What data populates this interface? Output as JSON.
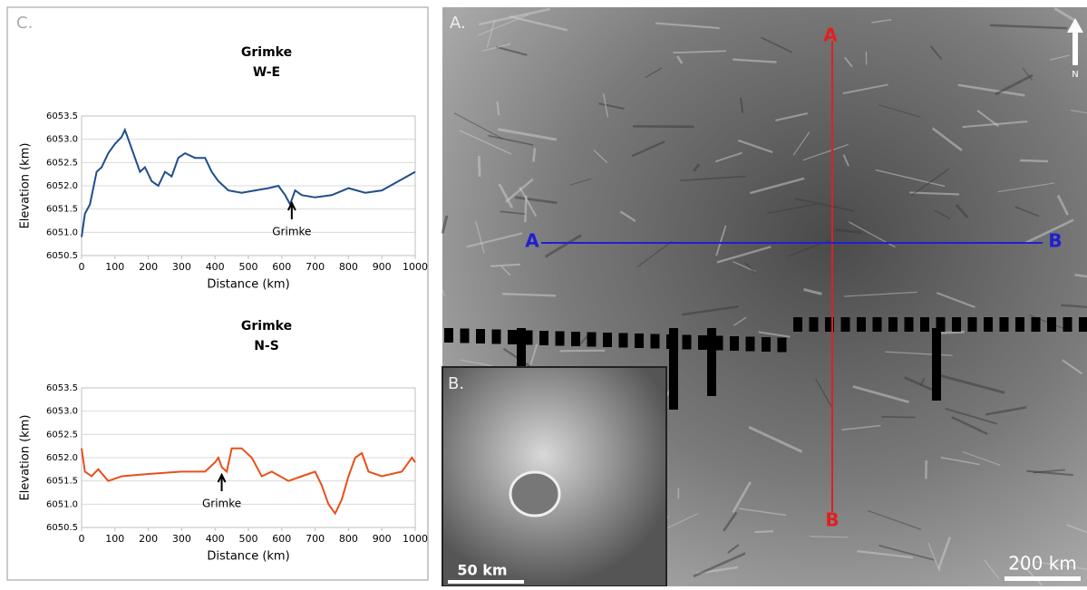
{
  "chart_data": [
    {
      "type": "line",
      "title": "Grimke",
      "subtitle": "W-E",
      "xlabel": "Distance (km)",
      "ylabel": "Elevation (km)",
      "color": "#1f4e8c",
      "annotation": "Grimke",
      "grid": true,
      "x": [
        0,
        10,
        25,
        45,
        60,
        80,
        100,
        120,
        130,
        145,
        160,
        175,
        190,
        210,
        230,
        250,
        270,
        290,
        310,
        340,
        370,
        390,
        410,
        440,
        480,
        520,
        560,
        590,
        610,
        625,
        640,
        660,
        700,
        750,
        800,
        850,
        900,
        950,
        1000
      ],
      "values": [
        6050.9,
        6051.4,
        6051.6,
        6052.3,
        6052.4,
        6052.7,
        6052.9,
        6053.05,
        6053.2,
        6052.9,
        6052.6,
        6052.3,
        6052.4,
        6052.1,
        6052.0,
        6052.3,
        6052.2,
        6052.6,
        6052.7,
        6052.6,
        6052.6,
        6052.3,
        6052.1,
        6051.9,
        6051.85,
        6051.9,
        6051.95,
        6052.0,
        6051.8,
        6051.6,
        6051.9,
        6051.8,
        6051.75,
        6051.8,
        6051.95,
        6051.85,
        6051.9,
        6052.1,
        6052.3
      ],
      "xlim": [
        0,
        1000
      ],
      "xticks": [
        0,
        100,
        200,
        300,
        400,
        500,
        600,
        700,
        800,
        900,
        1000
      ],
      "ylim": [
        6050.5,
        6053.5
      ],
      "yticks": [
        6050.5,
        {
          "value": 6051,
          "label": "6051.0"
        },
        6051.5,
        {
          "value": 6052,
          "label": "6052.0"
        },
        6052.5,
        {
          "value": 6053,
          "label": "6053.0"
        },
        6053.5
      ]
    },
    {
      "type": "line",
      "title": "Grimke",
      "subtitle": "N-S",
      "xlabel": "Distance (km)",
      "ylabel": "Elevation (km)",
      "color": "#e8501a",
      "annotation": "Grimke",
      "grid": true,
      "x": [
        0,
        10,
        30,
        50,
        80,
        120,
        200,
        300,
        370,
        400,
        410,
        420,
        435,
        450,
        480,
        510,
        540,
        570,
        620,
        660,
        700,
        720,
        740,
        760,
        780,
        800,
        820,
        840,
        860,
        900,
        960,
        990,
        1000
      ],
      "values": [
        6052.2,
        6051.7,
        6051.6,
        6051.75,
        6051.5,
        6051.6,
        6051.65,
        6051.7,
        6051.7,
        6051.9,
        6052.0,
        6051.8,
        6051.7,
        6052.2,
        6052.2,
        6052.0,
        6051.6,
        6051.7,
        6051.5,
        6051.6,
        6051.7,
        6051.4,
        6051.0,
        6050.8,
        6051.1,
        6051.6,
        6052.0,
        6052.1,
        6051.7,
        6051.6,
        6051.7,
        6052.0,
        6051.9
      ],
      "xlim": [
        0,
        1000
      ],
      "xticks": [
        0,
        100,
        200,
        300,
        400,
        500,
        600,
        700,
        800,
        900,
        1000
      ],
      "ylim": [
        6050.5,
        6053.5
      ],
      "yticks": [
        6050.5,
        {
          "value": 6051,
          "label": "6051.0"
        },
        6051.5,
        {
          "value": 6052,
          "label": "6052.0"
        },
        6052.5,
        {
          "value": 6053,
          "label": "6053.0"
        },
        6053.5
      ]
    }
  ],
  "panel_c_label": "C.",
  "image": {
    "panel_a": "A.",
    "panel_b": "B.",
    "ns_start": "A",
    "ns_end": "B",
    "we_start": "A",
    "we_end": "B",
    "north": "N",
    "scale_main": "200 km",
    "scale_inset": "50 km"
  }
}
